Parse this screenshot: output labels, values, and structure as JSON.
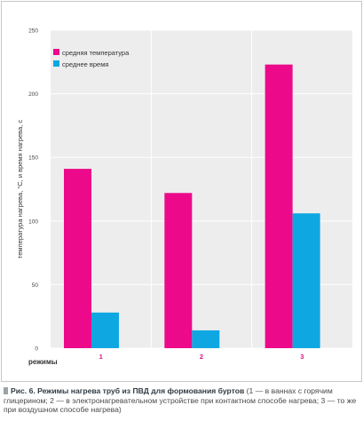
{
  "chart_data": {
    "type": "bar",
    "categories": [
      "1",
      "2",
      "3"
    ],
    "series": [
      {
        "name": "средняя температура",
        "values": [
          141,
          122,
          223
        ],
        "color": "#ec0a8a"
      },
      {
        "name": "среднее время",
        "values": [
          28,
          14,
          106
        ],
        "color": "#0fa7e2"
      }
    ],
    "ylim": [
      0,
      250
    ],
    "yticks": [
      "0",
      "50",
      "100",
      "150",
      "200",
      "250"
    ],
    "ylabel": "температура нагрева, °С, и время нагрева, с",
    "xlabel": "режимы",
    "grid": true,
    "legend": "top-left"
  },
  "caption": {
    "title": "Рис. 6. Режимы нагрева труб из ПВД для формования буртов",
    "body": " (1 — в ваннах с горячим глицерином; 2 — в электронагревательном устройстве при контактном способе нагрева; 3 — то же при воздушном способе нагрева)"
  }
}
